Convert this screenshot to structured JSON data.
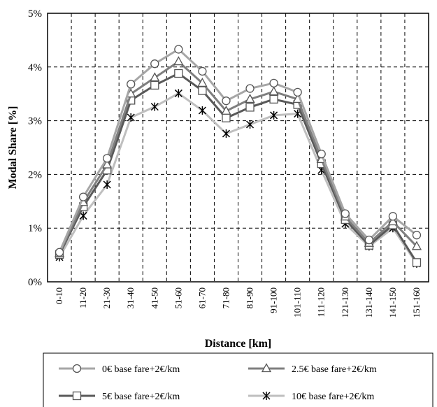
{
  "chart_data": {
    "type": "line",
    "title": "",
    "xlabel": "Distance [km]",
    "ylabel": "Modal  Share [%]",
    "ylim": [
      0,
      5
    ],
    "yticks": [
      "0%",
      "1%",
      "2%",
      "3%",
      "4%",
      "5%"
    ],
    "categories": [
      "0-10",
      "11-20",
      "21-30",
      "31-40",
      "41-50",
      "51-60",
      "61-70",
      "71-80",
      "81-90",
      "91-100",
      "101-110",
      "111-120",
      "121-130",
      "131-140",
      "141-150",
      "151-160"
    ],
    "grid": true,
    "legend_position": "bottom",
    "series": [
      {
        "name": "0€ base fare+2€/km",
        "marker": "circle",
        "color": "#a6a6a6",
        "values": [
          0.55,
          1.58,
          2.3,
          3.68,
          4.06,
          4.33,
          3.92,
          3.37,
          3.6,
          3.7,
          3.53,
          2.38,
          1.27,
          0.78,
          1.22,
          0.87
        ]
      },
      {
        "name": "2.5€ base fare+2€/km",
        "marker": "triangle",
        "color": "#7f7f7f",
        "values": [
          0.53,
          1.48,
          2.18,
          3.5,
          3.8,
          4.1,
          3.7,
          3.18,
          3.4,
          3.54,
          3.4,
          2.28,
          1.21,
          0.72,
          1.12,
          0.66
        ]
      },
      {
        "name": "5€ base fare+2€/km",
        "marker": "square",
        "color": "#595959",
        "values": [
          0.51,
          1.4,
          2.08,
          3.38,
          3.66,
          3.88,
          3.56,
          3.05,
          3.25,
          3.4,
          3.3,
          2.2,
          1.16,
          0.68,
          1.06,
          0.36
        ]
      },
      {
        "name": "10€ base fare+2€/km",
        "marker": "star",
        "color": "#bfbfbf",
        "values": [
          0.46,
          1.23,
          1.81,
          3.06,
          3.26,
          3.51,
          3.19,
          2.76,
          2.93,
          3.1,
          3.13,
          2.08,
          1.08,
          0.66,
          1.0,
          0.34
        ]
      }
    ]
  }
}
